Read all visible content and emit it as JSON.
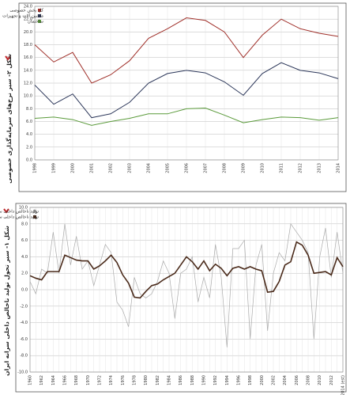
{
  "chart_data": [
    {
      "type": "line",
      "title": "شکل ۲- سیر نرخ‌های سرمایه‌گذاری خصوصی",
      "categories": [
        "1998",
        "1999",
        "2000",
        "2001",
        "2002",
        "2003",
        "2004",
        "2005",
        "2006",
        "2007",
        "2008",
        "2009",
        "2010",
        "2011",
        "2012",
        "2013",
        "2014"
      ],
      "series": [
        {
          "name": "کل بخش خصوصی",
          "color": "#a0302a",
          "values": [
            18.0,
            15.3,
            16.8,
            12.0,
            13.3,
            15.5,
            19.0,
            20.5,
            22.2,
            21.8,
            20.0,
            16.0,
            19.5,
            22.0,
            20.5,
            19.8,
            19.3
          ]
        },
        {
          "name": "ماشین آلات و تجهیزات",
          "color": "#2a3558",
          "values": [
            11.7,
            8.7,
            10.3,
            6.6,
            7.2,
            9.0,
            12.0,
            13.5,
            14.0,
            13.6,
            12.2,
            10.1,
            13.5,
            15.2,
            14.0,
            13.6,
            12.7
          ]
        },
        {
          "name": "ساختمان",
          "color": "#5a9a3a",
          "values": [
            6.5,
            6.7,
            6.3,
            5.4,
            6.0,
            6.5,
            7.2,
            7.2,
            8.0,
            8.1,
            7.0,
            5.8,
            6.3,
            6.7,
            6.6,
            6.2,
            6.6
          ]
        }
      ],
      "ylim": [
        0,
        24
      ],
      "yticks": [
        {
          "value": 0,
          "label": "0.0"
        },
        {
          "value": 2,
          "label": "2.0"
        },
        {
          "value": 4,
          "label": "4.0"
        },
        {
          "value": 6,
          "label": "6.0"
        },
        {
          "value": 8,
          "label": "8.0"
        },
        {
          "value": 10,
          "label": "10.0"
        },
        {
          "value": 12,
          "label": "12.0"
        },
        {
          "value": 14,
          "label": "14.0"
        },
        {
          "value": 16,
          "label": "16.0"
        },
        {
          "value": 18,
          "label": "18.0"
        },
        {
          "value": 20,
          "label": "20.0"
        },
        {
          "value": 22,
          "label": "22.0"
        },
        {
          "value": 24,
          "label": "24.0"
        }
      ],
      "grid": true,
      "legend": "upper left"
    },
    {
      "type": "line",
      "title": "شکل ۱- سیر تحول تولید ناخالص داخلی سرانه ایران",
      "categories": [
        "1960",
        null,
        "1962",
        null,
        "1964",
        null,
        "1966",
        null,
        "1968",
        null,
        "1970",
        null,
        "1972",
        null,
        "1974",
        null,
        "1976",
        null,
        "1978",
        null,
        "1980",
        null,
        "1982",
        null,
        "1984",
        null,
        "1986",
        null,
        "1988",
        null,
        "1990",
        null,
        "1992",
        null,
        "1994",
        null,
        "1996",
        null,
        "1998",
        null,
        "2000",
        null,
        "2002",
        null,
        "2004",
        null,
        "2006",
        null,
        "2008",
        null,
        "2010",
        null,
        "2012",
        null,
        "2014 (est)"
      ],
      "series": [
        {
          "name": "تولید ناخالص داخلی سرانه",
          "color": "#aaaaaa",
          "width": 0.7,
          "values": [
            1.0,
            -0.5,
            2.5,
            2.0,
            7.0,
            2.0,
            8.0,
            3.0,
            6.5,
            2.5,
            3.5,
            0.5,
            3.0,
            5.5,
            4.5,
            -1.5,
            -2.5,
            -4.5,
            1.5,
            -0.5,
            -1.0,
            -0.5,
            1.0,
            3.5,
            2.0,
            -3.5,
            2.0,
            2.5,
            4.0,
            -1.5,
            1.5,
            -1.0,
            5.5,
            1.5,
            -7.0,
            5.0,
            5.0,
            6.0,
            -6.0,
            3.0,
            5.5,
            -5.0,
            2.0,
            4.5,
            3.5,
            8.0,
            7.0,
            6.0,
            4.5,
            -6.0,
            4.0,
            7.5,
            1.5,
            7.0,
            2.0
          ]
        },
        {
          "name": "تولید ناخالص داخلی سرانه (میانگین متحرک پنج ساله)",
          "color": "#4a2a1a",
          "width": 1.6,
          "values": [
            1.7,
            1.4,
            1.2,
            2.2,
            2.2,
            2.2,
            4.2,
            3.9,
            3.6,
            3.5,
            3.5,
            2.5,
            2.9,
            3.5,
            4.2,
            3.3,
            1.8,
            0.8,
            -0.9,
            -1.0,
            -0.2,
            0.5,
            0.7,
            1.2,
            1.6,
            2.0,
            3.0,
            4.0,
            3.4,
            2.5,
            3.5,
            2.3,
            3.1,
            2.6,
            1.7,
            2.6,
            2.8,
            2.5,
            2.8,
            2.5,
            2.3,
            -0.3,
            -0.2,
            1.0,
            3.0,
            3.4,
            5.8,
            5.4,
            4.2,
            2.0,
            2.1,
            2.2,
            1.8,
            3.9,
            2.8
          ]
        }
      ],
      "ylim": [
        -10,
        10
      ],
      "yticks": [
        {
          "value": -10,
          "label": "-10.0"
        },
        {
          "value": -8,
          "label": "-8.0"
        },
        {
          "value": -6,
          "label": "-6.0"
        },
        {
          "value": -4,
          "label": "-4.0"
        },
        {
          "value": -2,
          "label": "-2.0"
        },
        {
          "value": 0,
          "label": "0.0"
        },
        {
          "value": 2,
          "label": "2.0"
        },
        {
          "value": 4,
          "label": "4.0"
        },
        {
          "value": 6,
          "label": "6.0"
        },
        {
          "value": 8,
          "label": "8.0"
        },
        {
          "value": 10,
          "label": "10.0"
        }
      ],
      "grid": true,
      "legend": "upper left"
    }
  ]
}
